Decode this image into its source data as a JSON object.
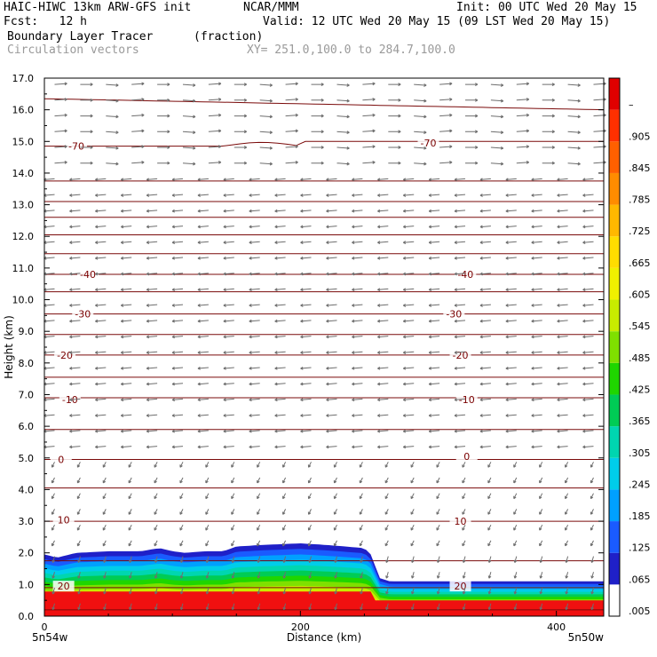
{
  "header": {
    "model": "HAIC-HIWC 13km ARW-GFS init",
    "org": "NCAR/MMM",
    "init": "Init: 00 UTC Wed 20 May 15",
    "fcst": "Fcst:   12 h",
    "valid": "Valid: 12 UTC Wed 20 May 15 (09 LST Wed 20 May 15)",
    "field": "Boundary Layer Tracer",
    "units": "(fraction)",
    "vectors": "Circulation vectors",
    "xy": "XY= 251.0,100.0 to 284.7,100.0"
  },
  "chart_data": {
    "type": "heatmap",
    "xlabel": "Distance (km)",
    "ylabel": "Height (km)",
    "xlim": [
      0,
      437
    ],
    "ylim": [
      0,
      17
    ],
    "x_ticks": [
      "0",
      "200",
      "400"
    ],
    "x_tick_values": [
      0,
      200,
      400
    ],
    "x_end_labels": [
      "5n54w",
      "5n50w"
    ],
    "y_ticks": [
      "0.0",
      "1.0",
      "2.0",
      "3.0",
      "4.0",
      "5.0",
      "6.0",
      "7.0",
      "8.0",
      "9.0",
      "10.0",
      "11.0",
      "12.0",
      "13.0",
      "14.0",
      "15.0",
      "16.0",
      "17.0"
    ],
    "colorbar": {
      "labels": [
        ".005",
        ".065",
        ".125",
        ".185",
        ".245",
        ".305",
        ".365",
        ".425",
        ".485",
        ".545",
        ".605",
        ".665",
        ".725",
        ".785",
        ".845",
        ".905",
        "–"
      ],
      "colors": [
        "#ffffff",
        "#1f20c8",
        "#1a5bff",
        "#00a0ff",
        "#00cdea",
        "#00d6b0",
        "#00cc55",
        "#1fd600",
        "#7fe000",
        "#c8ec00",
        "#f0f000",
        "#ffdd00",
        "#ffb800",
        "#ff8c00",
        "#ff6000",
        "#ff3000",
        "#e00000"
      ]
    },
    "tracer_top_km": [
      [
        0,
        1.95
      ],
      [
        10,
        1.85
      ],
      [
        25,
        2.0
      ],
      [
        50,
        2.05
      ],
      [
        75,
        2.05
      ],
      [
        90,
        2.15
      ],
      [
        100,
        2.05
      ],
      [
        110,
        2.0
      ],
      [
        125,
        2.05
      ],
      [
        140,
        2.05
      ],
      [
        150,
        2.2
      ],
      [
        170,
        2.25
      ],
      [
        200,
        2.3
      ],
      [
        220,
        2.25
      ],
      [
        235,
        2.2
      ],
      [
        250,
        2.15
      ],
      [
        255,
        1.95
      ],
      [
        262,
        1.2
      ],
      [
        270,
        1.1
      ],
      [
        300,
        1.1
      ],
      [
        350,
        1.1
      ],
      [
        400,
        1.1
      ],
      [
        437,
        1.1
      ]
    ],
    "contour_labels": [
      {
        "x": 25,
        "y": 14.85,
        "text": "-70"
      },
      {
        "x": 300,
        "y": 14.95,
        "text": "-70"
      },
      {
        "x": 34,
        "y": 10.8,
        "text": "-40"
      },
      {
        "x": 329,
        "y": 10.8,
        "text": "-40"
      },
      {
        "x": 30,
        "y": 9.55,
        "text": "-30"
      },
      {
        "x": 320,
        "y": 9.55,
        "text": "-30"
      },
      {
        "x": 16,
        "y": 8.25,
        "text": "-20"
      },
      {
        "x": 325,
        "y": 8.25,
        "text": "-20"
      },
      {
        "x": 20,
        "y": 6.85,
        "text": "-10"
      },
      {
        "x": 330,
        "y": 6.85,
        "text": "-10"
      },
      {
        "x": 13,
        "y": 4.95,
        "text": "0"
      },
      {
        "x": 330,
        "y": 5.05,
        "text": "0"
      },
      {
        "x": 15,
        "y": 3.05,
        "text": "10"
      },
      {
        "x": 325,
        "y": 3.0,
        "text": "10"
      },
      {
        "x": 15,
        "y": 0.95,
        "text": "20"
      },
      {
        "x": 325,
        "y": 0.95,
        "text": "20"
      }
    ],
    "contour_heights_km": [
      0.2,
      0.9,
      1.75,
      3.0,
      4.05,
      4.95,
      5.9,
      6.9,
      7.55,
      8.25,
      8.9,
      9.55,
      10.25,
      10.8,
      11.45,
      12.05,
      12.6,
      13.1,
      13.75,
      14.85,
      16.35
    ],
    "vectors": "circulation-vectors"
  }
}
